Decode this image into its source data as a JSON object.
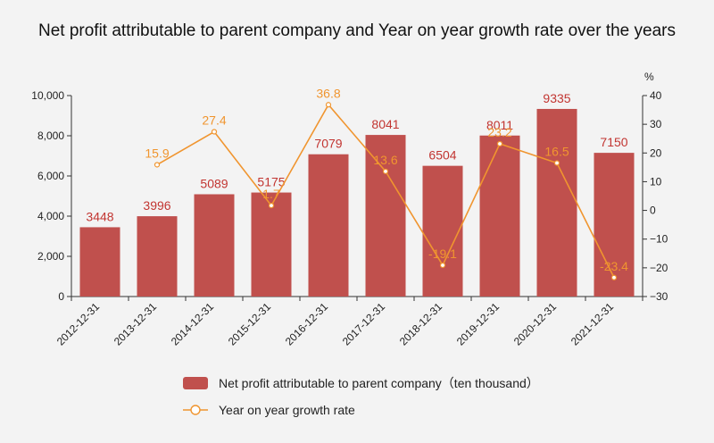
{
  "chart_data": {
    "type": "bar",
    "title": "Net profit attributable to parent company and Year on year growth rate over the years",
    "categories": [
      "2012-12-31",
      "2013-12-31",
      "2014-12-31",
      "2015-12-31",
      "2016-12-31",
      "2017-12-31",
      "2018-12-31",
      "2019-12-31",
      "2020-12-31",
      "2021-12-31"
    ],
    "series": [
      {
        "name": "Net profit attributable to parent company（ten thousand）",
        "type": "bar",
        "axis": "left",
        "color": "#c0504d",
        "values": [
          3448,
          3996,
          5089,
          5175,
          7079,
          8041,
          6504,
          8011,
          9335,
          7150
        ]
      },
      {
        "name": "Year on year growth rate",
        "type": "line",
        "axis": "right",
        "color": "#f0952f",
        "values": [
          null,
          15.9,
          27.4,
          1.7,
          36.8,
          13.6,
          -19.1,
          23.2,
          16.5,
          -23.4
        ]
      }
    ],
    "y_left": {
      "min": 0,
      "max": 10000,
      "ticks": [
        "0",
        "2,000",
        "4,000",
        "6,000",
        "8,000",
        "10,000"
      ]
    },
    "y_right": {
      "min": -30,
      "max": 40,
      "unit": "%",
      "ticks": [
        "−30",
        "−20",
        "−10",
        "0",
        "10",
        "20",
        "30",
        "40"
      ]
    },
    "legend_position": "bottom",
    "grid": false
  }
}
